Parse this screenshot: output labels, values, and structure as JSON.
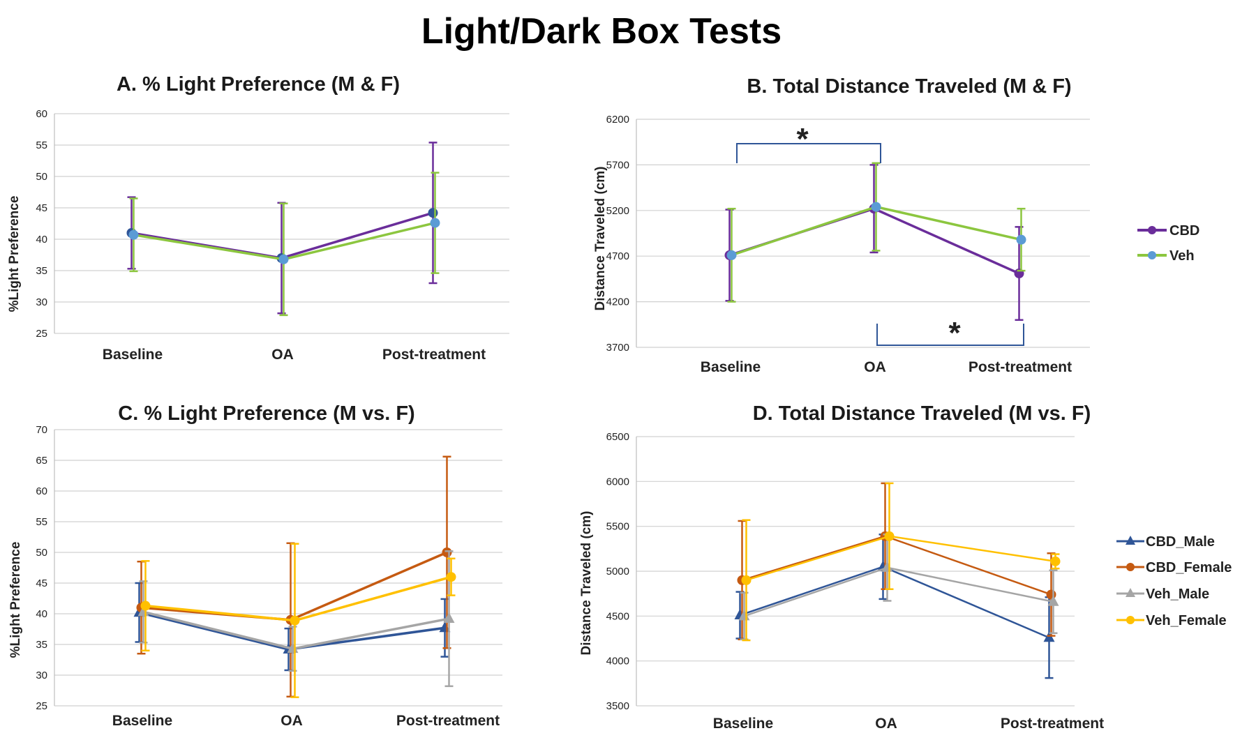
{
  "figure_title": "Light/Dark Box Tests",
  "chart_data": [
    {
      "id": "A",
      "type": "line",
      "title": "A. % Light Preference (M & F)",
      "xlabel": "",
      "ylabel": "%Light Preference",
      "categories": [
        "Baseline",
        "OA",
        "Post-treatment"
      ],
      "ylim": [
        25,
        60
      ],
      "yticks": [
        25,
        30,
        35,
        40,
        45,
        50,
        55,
        60
      ],
      "grid": true,
      "legend": "none",
      "series": [
        {
          "name": "CBD",
          "color": "#6a2d9a",
          "marker": "circle",
          "values": [
            41.0,
            37.0,
            44.2
          ],
          "error": [
            5.7,
            8.8,
            11.2
          ]
        },
        {
          "name": "Veh",
          "color": "#8cc63f",
          "marker": "circle",
          "values": [
            40.7,
            36.8,
            42.6
          ],
          "error": [
            5.8,
            8.9,
            8.0
          ]
        }
      ]
    },
    {
      "id": "B",
      "type": "line",
      "title": "B. Total Distance Traveled (M & F)",
      "xlabel": "",
      "ylabel": "Distance Traveled (cm)",
      "categories": [
        "Baseline",
        "OA",
        "Post-treatment"
      ],
      "ylim": [
        3700,
        6200
      ],
      "yticks": [
        3700,
        4200,
        4700,
        5200,
        5700,
        6200
      ],
      "grid": true,
      "legend": "right",
      "legend_labels": [
        "CBD",
        "Veh"
      ],
      "annotations": [
        {
          "text": "*",
          "from": "Baseline",
          "to": "OA",
          "position": "above"
        },
        {
          "text": "*",
          "from": "OA",
          "to": "Post-treatment",
          "position": "below"
        }
      ],
      "series": [
        {
          "name": "CBD",
          "color": "#6a2d9a",
          "marker": "circle",
          "values": [
            4710,
            5220,
            4510
          ],
          "error": [
            500,
            480,
            510
          ]
        },
        {
          "name": "Veh",
          "color": "#8cc63f",
          "marker": "circle",
          "values": [
            4710,
            5240,
            4880
          ],
          "error": [
            510,
            480,
            340
          ]
        }
      ]
    },
    {
      "id": "C",
      "type": "line",
      "title": "C. % Light Preference (M vs. F)",
      "xlabel": "",
      "ylabel": "%Light  Preference",
      "categories": [
        "Baseline",
        "OA",
        "Post-treatment"
      ],
      "ylim": [
        25,
        70
      ],
      "yticks": [
        25,
        30,
        35,
        40,
        45,
        50,
        55,
        60,
        65,
        70
      ],
      "grid": true,
      "legend": "none",
      "series": [
        {
          "name": "CBD_Male",
          "color": "#2f5597",
          "marker": "triangle",
          "values": [
            40.2,
            34.2,
            37.7
          ],
          "error": [
            4.8,
            3.4,
            4.7
          ]
        },
        {
          "name": "CBD_Female",
          "color": "#c55a11",
          "marker": "circle",
          "values": [
            41.0,
            39.0,
            50.0
          ],
          "error": [
            7.5,
            12.5,
            15.6
          ]
        },
        {
          "name": "Veh_Male",
          "color": "#a5a5a5",
          "marker": "triangle",
          "values": [
            40.3,
            34.3,
            39.2
          ],
          "error": [
            5.0,
            3.6,
            11.0
          ]
        },
        {
          "name": "Veh_Female",
          "color": "#ffc000",
          "marker": "circle",
          "values": [
            41.3,
            38.9,
            46.0
          ],
          "error": [
            7.3,
            12.5,
            3.0
          ]
        }
      ]
    },
    {
      "id": "D",
      "type": "line",
      "title": "D. Total Distance Traveled (M vs. F)",
      "xlabel": "",
      "ylabel": "Distance Traveled (cm)",
      "categories": [
        "Baseline",
        "OA",
        "Post-treatment"
      ],
      "ylim": [
        3500,
        6500
      ],
      "yticks": [
        3500,
        4000,
        4500,
        5000,
        5500,
        6000,
        6500
      ],
      "grid": true,
      "legend": "right",
      "legend_labels": [
        "CBD_Male",
        "CBD_Female",
        "Veh_Male",
        "Veh_Female"
      ],
      "series": [
        {
          "name": "CBD_Male",
          "color": "#2f5597",
          "marker": "triangle",
          "values": [
            4510,
            5050,
            4260
          ],
          "error": [
            260,
            360,
            450
          ]
        },
        {
          "name": "CBD_Female",
          "color": "#c55a11",
          "marker": "circle",
          "values": [
            4900,
            5390,
            4740
          ],
          "error": [
            660,
            590,
            460
          ]
        },
        {
          "name": "Veh_Male",
          "color": "#a5a5a5",
          "marker": "triangle",
          "values": [
            4500,
            5040,
            4660
          ],
          "error": [
            260,
            370,
            350
          ]
        },
        {
          "name": "Veh_Female",
          "color": "#ffc000",
          "marker": "circle",
          "values": [
            4900,
            5390,
            5110
          ],
          "error": [
            670,
            590,
            80
          ]
        }
      ]
    }
  ]
}
